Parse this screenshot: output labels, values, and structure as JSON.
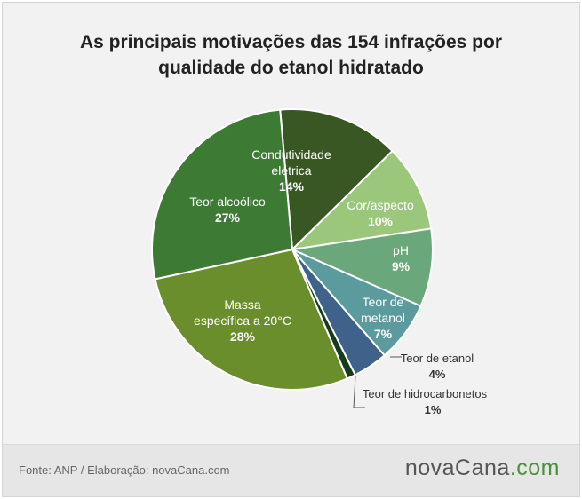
{
  "header": {
    "title_line1": "As principais motivações das 154 infrações por",
    "title_line2": "qualidade do etanol hidratado"
  },
  "footer": {
    "source": "Fonte: ANP / Elaboração: novaCana.com",
    "brand_main": "novaCana",
    "brand_ext": ".com"
  },
  "chart_data": {
    "type": "pie",
    "title": "As principais motivações das 154 infrações por qualidade do etanol hidratado",
    "start_angle_deg": -5,
    "direction": "clockwise",
    "slices": [
      {
        "label": [
          "Condutividade",
          "elétrica"
        ],
        "pct": "14%",
        "value": 14,
        "color": "#385723"
      },
      {
        "label": [
          "Cor/aspecto"
        ],
        "pct": "10%",
        "value": 10,
        "color": "#9bc77a"
      },
      {
        "label": [
          "pH"
        ],
        "pct": "9%",
        "value": 9,
        "color": "#6aa77a"
      },
      {
        "label": [
          "Teor de",
          "metanol"
        ],
        "pct": "7%",
        "value": 7,
        "color": "#5b9a9d"
      },
      {
        "label": [
          "Teor de etanol"
        ],
        "pct": "4%",
        "value": 4,
        "color": "#3e6289"
      },
      {
        "label": [
          "Teor de hidrocarbonetos"
        ],
        "pct": "1%",
        "value": 1,
        "color": "#173b1c"
      },
      {
        "label": [
          "Massa",
          "específica a 20°C"
        ],
        "pct": "28%",
        "value": 28,
        "color": "#6b8e2d"
      },
      {
        "label": [
          "Teor alcoólico"
        ],
        "pct": "27%",
        "value": 27,
        "color": "#3d7a34"
      }
    ],
    "legend": "none"
  }
}
